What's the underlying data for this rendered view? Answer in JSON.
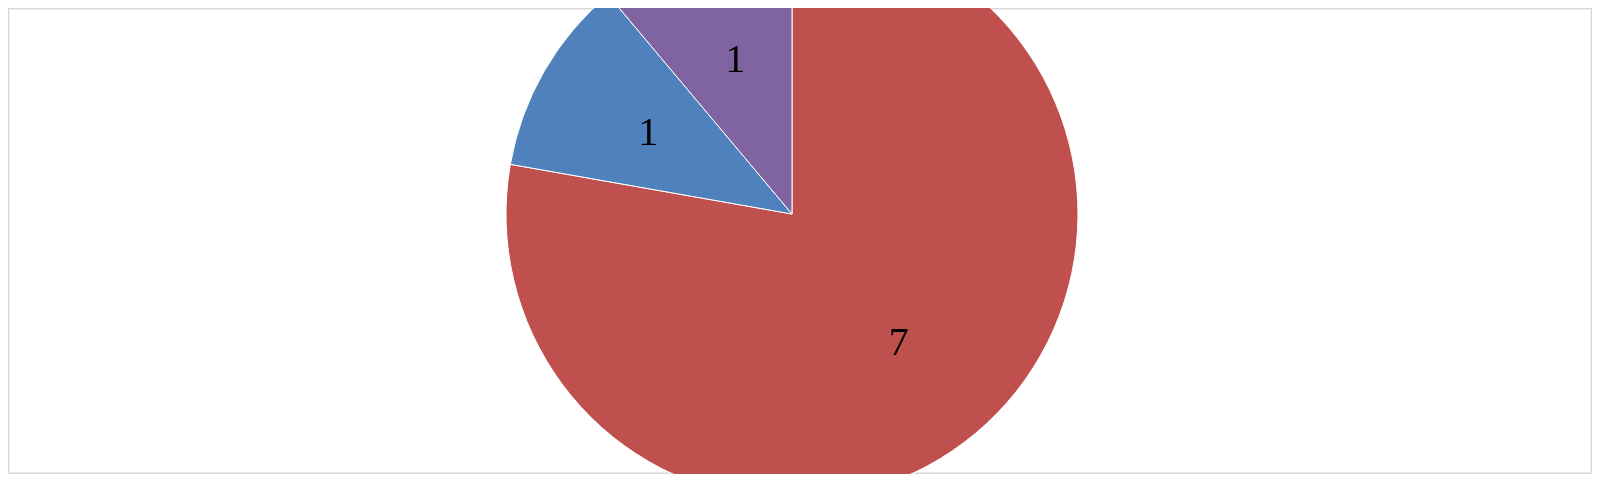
{
  "chart_data": {
    "type": "pie",
    "categories": [
      null,
      null,
      null
    ],
    "values": [
      7,
      1,
      1
    ],
    "colors": [
      "#c0504d",
      "#4f81bd",
      "#8064a2"
    ],
    "data_labels": true
  }
}
